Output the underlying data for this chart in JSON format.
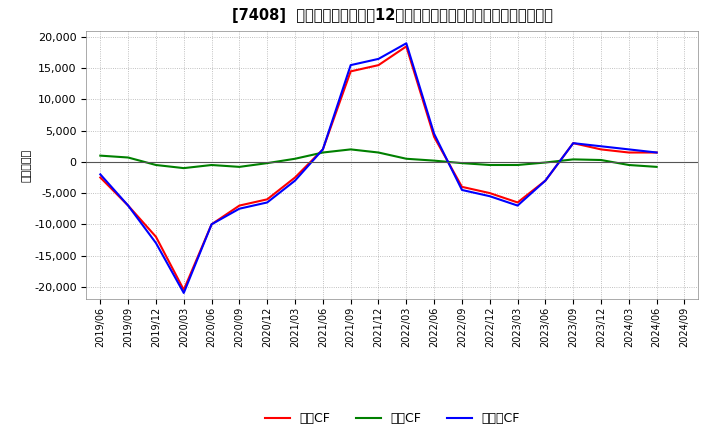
{
  "title": "[7408]  キャッシュフローの12か月移動合計の対前年同期増減額の推移",
  "ylabel": "（百万円）",
  "ylim": [
    -22000,
    21000
  ],
  "yticks": [
    -20000,
    -15000,
    -10000,
    -5000,
    0,
    5000,
    10000,
    15000,
    20000
  ],
  "x_labels": [
    "2019/06",
    "2019/09",
    "2019/12",
    "2020/03",
    "2020/06",
    "2020/09",
    "2020/12",
    "2021/03",
    "2021/06",
    "2021/09",
    "2021/12",
    "2022/03",
    "2022/06",
    "2022/09",
    "2022/12",
    "2023/03",
    "2023/06",
    "2023/09",
    "2023/12",
    "2024/03",
    "2024/06",
    "2024/09"
  ],
  "operating_cf": [
    -2500,
    -7000,
    -12000,
    -20500,
    -10000,
    -7000,
    -6000,
    -2500,
    2000,
    14500,
    15500,
    18500,
    4000,
    -4000,
    -5000,
    -6500,
    -3000,
    3000,
    2000,
    1500,
    1500,
    null
  ],
  "investing_cf": [
    1000,
    700,
    -500,
    -1000,
    -500,
    -800,
    -200,
    500,
    1500,
    2000,
    1500,
    500,
    200,
    -200,
    -500,
    -500,
    -100,
    400,
    300,
    -500,
    -800,
    null
  ],
  "free_cf": [
    -2000,
    -7000,
    -13000,
    -21000,
    -10000,
    -7500,
    -6500,
    -3000,
    2000,
    15500,
    16500,
    19000,
    4500,
    -4500,
    -5500,
    -7000,
    -3000,
    3000,
    2500,
    2000,
    1500,
    null
  ],
  "legend_labels": [
    "営業CF",
    "投資CF",
    "フリーCF"
  ],
  "line_colors": {
    "operating": "#ff0000",
    "investing": "#008000",
    "free": "#0000ff"
  },
  "line_width": 1.5,
  "background_color": "#ffffff",
  "plot_bg_color": "#ffffff",
  "grid_color": "#999999",
  "zero_line_color": "#555555"
}
